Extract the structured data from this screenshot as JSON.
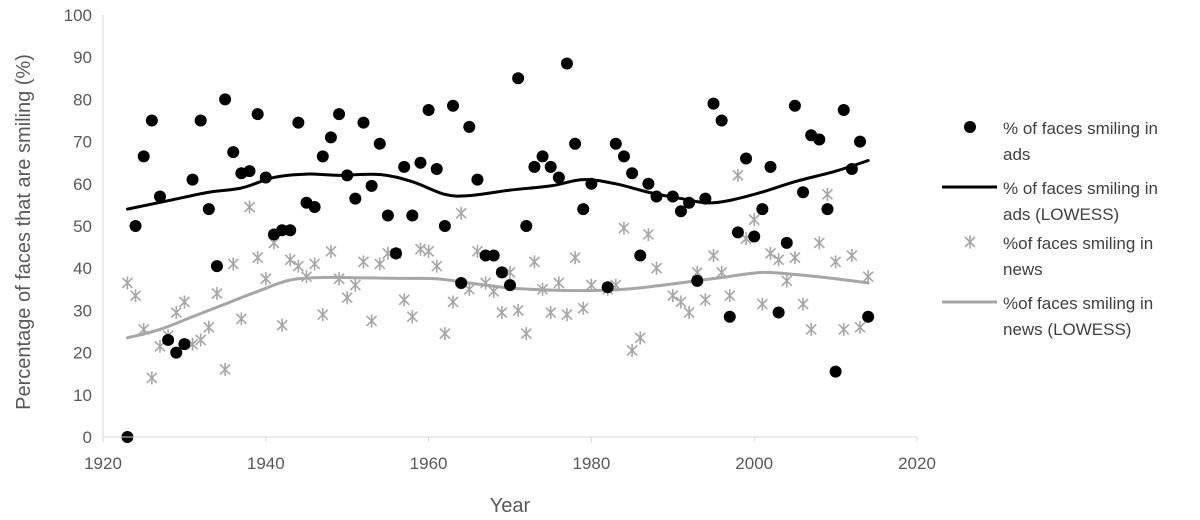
{
  "chart_data": {
    "type": "scatter",
    "xlabel": "Year",
    "ylabel": "Percentage of faces that are smiling (%)",
    "xlim": [
      1920,
      2020
    ],
    "ylim": [
      0,
      100
    ],
    "xticks": [
      1920,
      1940,
      1960,
      1980,
      2000,
      2020
    ],
    "yticks": [
      0,
      10,
      20,
      30,
      40,
      50,
      60,
      70,
      80,
      90,
      100
    ],
    "grid": false,
    "legend_position": "right",
    "series": [
      {
        "name": "% of faces smiling in ads",
        "legend_lines": [
          "% of faces smiling in",
          "ads"
        ],
        "kind": "marker-dot",
        "color": "#000000",
        "points": [
          [
            1923,
            0
          ],
          [
            1924,
            50
          ],
          [
            1925,
            66.5
          ],
          [
            1926,
            75
          ],
          [
            1927,
            57
          ],
          [
            1928,
            23
          ],
          [
            1929,
            20
          ],
          [
            1930,
            22
          ],
          [
            1931,
            61
          ],
          [
            1932,
            75
          ],
          [
            1933,
            54
          ],
          [
            1934,
            40.5
          ],
          [
            1935,
            80
          ],
          [
            1936,
            67.5
          ],
          [
            1937,
            62.5
          ],
          [
            1938,
            63
          ],
          [
            1939,
            76.5
          ],
          [
            1940,
            61.5
          ],
          [
            1941,
            48
          ],
          [
            1942,
            49
          ],
          [
            1943,
            49
          ],
          [
            1944,
            74.5
          ],
          [
            1945,
            55.5
          ],
          [
            1946,
            54.5
          ],
          [
            1947,
            66.5
          ],
          [
            1948,
            71
          ],
          [
            1949,
            76.5
          ],
          [
            1950,
            62
          ],
          [
            1951,
            56.5
          ],
          [
            1952,
            74.5
          ],
          [
            1953,
            59.5
          ],
          [
            1954,
            69.5
          ],
          [
            1955,
            52.5
          ],
          [
            1956,
            43.5
          ],
          [
            1957,
            64
          ],
          [
            1958,
            52.5
          ],
          [
            1959,
            65
          ],
          [
            1960,
            77.5
          ],
          [
            1961,
            63.5
          ],
          [
            1962,
            50
          ],
          [
            1963,
            78.5
          ],
          [
            1964,
            36.5
          ],
          [
            1965,
            73.5
          ],
          [
            1966,
            61
          ],
          [
            1967,
            43
          ],
          [
            1968,
            43
          ],
          [
            1969,
            39
          ],
          [
            1970,
            36
          ],
          [
            1971,
            85
          ],
          [
            1972,
            50
          ],
          [
            1973,
            64
          ],
          [
            1974,
            66.5
          ],
          [
            1975,
            64
          ],
          [
            1976,
            61.5
          ],
          [
            1977,
            88.5
          ],
          [
            1978,
            69.5
          ],
          [
            1979,
            54
          ],
          [
            1980,
            60
          ],
          [
            1982,
            35.5
          ],
          [
            1983,
            69.5
          ],
          [
            1984,
            66.5
          ],
          [
            1985,
            62.5
          ],
          [
            1986,
            43
          ],
          [
            1987,
            60
          ],
          [
            1988,
            57
          ],
          [
            1990,
            57
          ],
          [
            1991,
            53.5
          ],
          [
            1992,
            55.5
          ],
          [
            1993,
            37
          ],
          [
            1994,
            56.5
          ],
          [
            1995,
            79
          ],
          [
            1996,
            75
          ],
          [
            1997,
            28.5
          ],
          [
            1998,
            48.5
          ],
          [
            1999,
            66
          ],
          [
            2000,
            47.5
          ],
          [
            2001,
            54
          ],
          [
            2002,
            64
          ],
          [
            2003,
            29.5
          ],
          [
            2004,
            46
          ],
          [
            2005,
            78.5
          ],
          [
            2006,
            58
          ],
          [
            2007,
            71.5
          ],
          [
            2008,
            70.5
          ],
          [
            2009,
            54
          ],
          [
            2010,
            15.5
          ],
          [
            2011,
            77.5
          ],
          [
            2012,
            63.5
          ],
          [
            2013,
            70
          ],
          [
            2014,
            28.5
          ]
        ]
      },
      {
        "name": "% of faces smiling in ads (LOWESS)",
        "legend_lines": [
          "% of faces smiling in",
          "ads (LOWESS)"
        ],
        "kind": "line",
        "color": "#000000",
        "points": [
          [
            1923,
            54
          ],
          [
            1928,
            56
          ],
          [
            1933,
            58
          ],
          [
            1937,
            59
          ],
          [
            1941,
            61.5
          ],
          [
            1945,
            62.3
          ],
          [
            1949,
            62
          ],
          [
            1954,
            62.2
          ],
          [
            1958,
            60.5
          ],
          [
            1962,
            57.5
          ],
          [
            1965,
            57.2
          ],
          [
            1970,
            58.5
          ],
          [
            1975,
            59.5
          ],
          [
            1979,
            61
          ],
          [
            1983,
            60
          ],
          [
            1987,
            58
          ],
          [
            1991,
            56.5
          ],
          [
            1995,
            55.5
          ],
          [
            2000,
            57.5
          ],
          [
            2005,
            60.5
          ],
          [
            2010,
            63
          ],
          [
            2014,
            65.5
          ]
        ]
      },
      {
        "name": "%of faces smiling in news",
        "legend_lines": [
          "%of faces smiling in",
          "news"
        ],
        "kind": "marker-star",
        "color": "#a6a6a6",
        "points": [
          [
            1923,
            36.5
          ],
          [
            1924,
            33.5
          ],
          [
            1925,
            25.5
          ],
          [
            1926,
            14
          ],
          [
            1927,
            21.5
          ],
          [
            1928,
            24
          ],
          [
            1929,
            29.5
          ],
          [
            1930,
            32
          ],
          [
            1931,
            22
          ],
          [
            1932,
            23
          ],
          [
            1933,
            26
          ],
          [
            1934,
            34
          ],
          [
            1935,
            16
          ],
          [
            1936,
            41
          ],
          [
            1937,
            28
          ],
          [
            1938,
            54.5
          ],
          [
            1939,
            42.5
          ],
          [
            1940,
            37.5
          ],
          [
            1941,
            46
          ],
          [
            1942,
            26.5
          ],
          [
            1943,
            42
          ],
          [
            1944,
            40.5
          ],
          [
            1945,
            38
          ],
          [
            1946,
            41
          ],
          [
            1947,
            29
          ],
          [
            1948,
            44
          ],
          [
            1949,
            37.5
          ],
          [
            1950,
            33
          ],
          [
            1951,
            36
          ],
          [
            1952,
            41.5
          ],
          [
            1953,
            27.5
          ],
          [
            1954,
            41
          ],
          [
            1955,
            43.5
          ],
          [
            1956,
            43.5
          ],
          [
            1957,
            32.5
          ],
          [
            1958,
            28.5
          ],
          [
            1959,
            44.5
          ],
          [
            1960,
            44
          ],
          [
            1961,
            40.5
          ],
          [
            1962,
            24.5
          ],
          [
            1963,
            32
          ],
          [
            1964,
            53
          ],
          [
            1965,
            35
          ],
          [
            1966,
            44
          ],
          [
            1967,
            36.5
          ],
          [
            1968,
            34.5
          ],
          [
            1969,
            29.5
          ],
          [
            1970,
            39
          ],
          [
            1971,
            30
          ],
          [
            1972,
            24.5
          ],
          [
            1973,
            41.5
          ],
          [
            1974,
            35
          ],
          [
            1975,
            29.5
          ],
          [
            1976,
            36.5
          ],
          [
            1977,
            29
          ],
          [
            1978,
            42.5
          ],
          [
            1979,
            30.5
          ],
          [
            1980,
            36
          ],
          [
            1982,
            35
          ],
          [
            1983,
            36
          ],
          [
            1984,
            49.5
          ],
          [
            1985,
            20.5
          ],
          [
            1986,
            23.5
          ],
          [
            1987,
            48
          ],
          [
            1988,
            40
          ],
          [
            1990,
            33.5
          ],
          [
            1991,
            32
          ],
          [
            1992,
            29.5
          ],
          [
            1993,
            39
          ],
          [
            1994,
            32.5
          ],
          [
            1995,
            43
          ],
          [
            1996,
            39
          ],
          [
            1997,
            33.5
          ],
          [
            1998,
            62
          ],
          [
            1999,
            47
          ],
          [
            2000,
            51.5
          ],
          [
            2001,
            31.5
          ],
          [
            2002,
            43.5
          ],
          [
            2003,
            42
          ],
          [
            2004,
            37
          ],
          [
            2005,
            42.5
          ],
          [
            2006,
            31.5
          ],
          [
            2007,
            25.5
          ],
          [
            2008,
            46
          ],
          [
            2009,
            57.5
          ],
          [
            2010,
            41.5
          ],
          [
            2011,
            25.5
          ],
          [
            2012,
            43
          ],
          [
            2013,
            26
          ],
          [
            2014,
            38
          ]
        ]
      },
      {
        "name": "%of faces smiling in news (LOWESS)",
        "legend_lines": [
          "%of faces smiling in",
          "news (LOWESS)"
        ],
        "kind": "line",
        "color": "#a6a6a6",
        "points": [
          [
            1923,
            23.5
          ],
          [
            1927,
            25.5
          ],
          [
            1931,
            28.5
          ],
          [
            1935,
            31.5
          ],
          [
            1939,
            34.5
          ],
          [
            1943,
            37.2
          ],
          [
            1947,
            37.8
          ],
          [
            1952,
            37.7
          ],
          [
            1957,
            37.6
          ],
          [
            1961,
            37.5
          ],
          [
            1965,
            36.5
          ],
          [
            1970,
            35.3
          ],
          [
            1975,
            34.8
          ],
          [
            1980,
            34.7
          ],
          [
            1984,
            35
          ],
          [
            1988,
            35.8
          ],
          [
            1992,
            36.8
          ],
          [
            1996,
            37.8
          ],
          [
            2001,
            39
          ],
          [
            2005,
            38.5
          ],
          [
            2010,
            37.5
          ],
          [
            2014,
            36.5
          ]
        ]
      }
    ]
  }
}
